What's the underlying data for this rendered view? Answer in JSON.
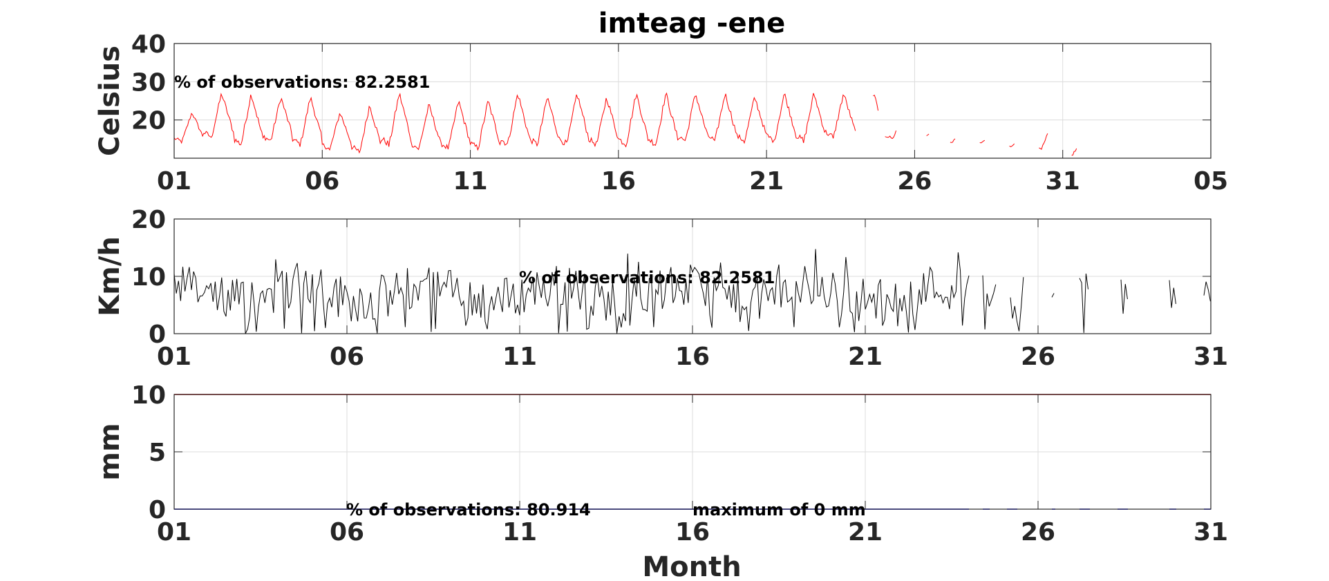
{
  "chart_data": [
    {
      "type": "line",
      "title": "imteag -ene",
      "ylabel": "Celsius",
      "ylim": [
        10,
        40
      ],
      "yticks": [
        "20",
        "30",
        "40"
      ],
      "ytick_values": [
        20,
        30,
        40
      ],
      "xlim": [
        1,
        36
      ],
      "xticks": [
        "01",
        "06",
        "11",
        "16",
        "21",
        "26",
        "31",
        "05"
      ],
      "xtick_values": [
        1,
        6,
        11,
        16,
        21,
        26,
        31,
        36
      ],
      "annotation": "% of observations: 82.2581",
      "series": [
        {
          "color": "#ff0000",
          "style": "daily-cycle",
          "segments": [
            {
              "start": 1.0,
              "end": 24.0
            },
            {
              "start": 24.6,
              "end": 24.8
            },
            {
              "start": 25.0,
              "end": 25.4
            },
            {
              "start": 26.4,
              "end": 26.5
            },
            {
              "start": 27.2,
              "end": 27.4
            },
            {
              "start": 28.2,
              "end": 28.4
            },
            {
              "start": 29.2,
              "end": 29.4
            },
            {
              "start": 30.2,
              "end": 30.5
            },
            {
              "start": 31.3,
              "end": 31.5
            }
          ],
          "daily_max": [
            22,
            27,
            27,
            26,
            26,
            22,
            24,
            27,
            24,
            25,
            25,
            27,
            26,
            27,
            26,
            27,
            27,
            27,
            27,
            26,
            27,
            27,
            27,
            27,
            21,
            17,
            17,
            16,
            15,
            18,
            14
          ],
          "daily_min": [
            14,
            15,
            13,
            14,
            13,
            12,
            11,
            13,
            12,
            12,
            12,
            13,
            13,
            13,
            13,
            13,
            13,
            14,
            14,
            14,
            14,
            14,
            15,
            15,
            15,
            15,
            14,
            14,
            13,
            12,
            10
          ]
        }
      ]
    },
    {
      "type": "line",
      "title": "",
      "ylabel": "Km/h",
      "ylim": [
        0,
        20
      ],
      "yticks": [
        "0",
        "10",
        "20"
      ],
      "ytick_values": [
        0,
        10,
        20
      ],
      "xlim": [
        1,
        31
      ],
      "xticks": [
        "01",
        "06",
        "11",
        "16",
        "21",
        "26",
        "31"
      ],
      "xtick_values": [
        1,
        6,
        11,
        16,
        21,
        26,
        31
      ],
      "annotation": "% of observations: 82.2581",
      "series": [
        {
          "color": "#000000",
          "style": "noisy",
          "segments": [
            {
              "start": 1.0,
              "end": 24.0
            },
            {
              "start": 24.4,
              "end": 24.8
            },
            {
              "start": 25.2,
              "end": 25.6
            },
            {
              "start": 26.4,
              "end": 26.5
            },
            {
              "start": 27.2,
              "end": 27.5
            },
            {
              "start": 28.4,
              "end": 28.6
            },
            {
              "start": 29.8,
              "end": 30.0
            },
            {
              "start": 30.8,
              "end": 31.0
            }
          ],
          "mean": 7,
          "range": [
            0,
            15
          ]
        }
      ]
    },
    {
      "type": "line",
      "title": "",
      "ylabel": "mm",
      "xlabel": "Month",
      "ylim": [
        0,
        10
      ],
      "yticks": [
        "0",
        "5",
        "10"
      ],
      "ytick_values": [
        0,
        5,
        10
      ],
      "xlim": [
        1,
        31
      ],
      "xticks": [
        "01",
        "06",
        "11",
        "16",
        "21",
        "26",
        "31"
      ],
      "xtick_values": [
        1,
        6,
        11,
        16,
        21,
        26,
        31
      ],
      "annotations": [
        "% of observations: 80.914",
        "maximum of 0 mm"
      ],
      "threshold": {
        "value": 10,
        "color": "#cc0000"
      },
      "series": [
        {
          "color": "#0000ff",
          "style": "flat",
          "value": 0,
          "segments": [
            {
              "start": 1.0,
              "end": 24.0
            },
            {
              "start": 24.4,
              "end": 24.6
            },
            {
              "start": 25.1,
              "end": 25.4
            },
            {
              "start": 26.4,
              "end": 26.5
            },
            {
              "start": 27.2,
              "end": 27.5
            },
            {
              "start": 28.3,
              "end": 28.6
            },
            {
              "start": 29.8,
              "end": 30.0
            },
            {
              "start": 30.8,
              "end": 31.0
            }
          ]
        }
      ]
    }
  ]
}
